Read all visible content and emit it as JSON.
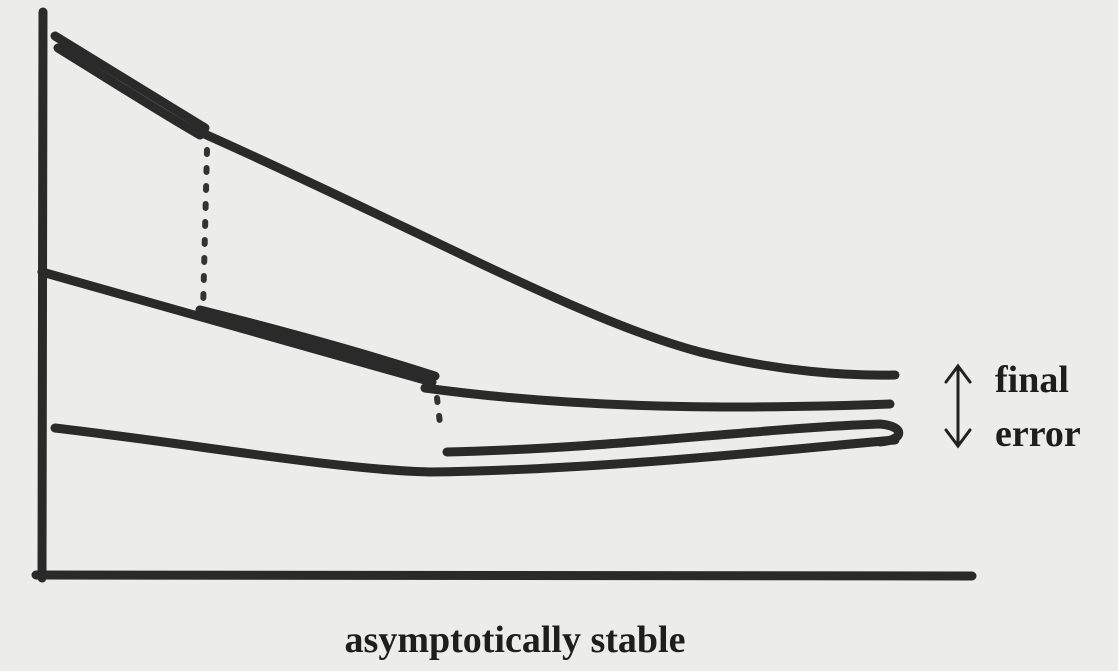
{
  "annotation": {
    "top": "final",
    "bottom": "error"
  },
  "caption": "asymptotically stable"
}
